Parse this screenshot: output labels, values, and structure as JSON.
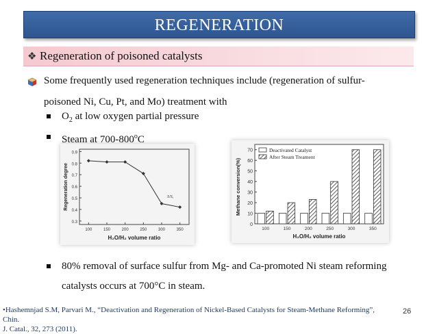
{
  "slide": {
    "title": "REGENERATION",
    "subtitle": "Regeneration of poisoned catalysts",
    "intro_line1": "Some frequently used  regeneration techniques include (regeneration of sulfur-",
    "intro_line2": "poisoned Ni, Cu, Pt, and Mo) treatment with",
    "bullet1_prefix": "O",
    "bullet1_sub": "2",
    "bullet1_suffix": " at low oxygen partial pressure",
    "bullet2_prefix": "Steam  at 700-800",
    "bullet2_sup": "o",
    "bullet2_suffix": "C",
    "bullet3_line1": "80% removal of surface sulfur from Mg- and Ca-promoted Ni steam reforming",
    "bullet3_line2": "catalysts occurs at 700°C in steam.",
    "footer_line1": "•Hashemnjad S.M, Parvari M., “Deactivation and Regeneration of Nickel-Based Catalysts for Steam-Methane Reforming”, Chin.",
    "footer_line2": "J. Catal., 32, 273 (2011).",
    "page_number": "26"
  },
  "chart_data": [
    {
      "type": "line",
      "x": [
        100,
        150,
        200,
        250,
        300,
        350
      ],
      "y": [
        0.82,
        0.81,
        0.81,
        0.71,
        0.45,
        0.42
      ],
      "xlabel": "H₂O/H₂ volume ratio",
      "ylabel": "Regeneration degree",
      "annotation": "S/Sₒ",
      "xticks": [
        "100",
        "150",
        "200",
        "250",
        "300",
        "350"
      ],
      "yticks": [
        "0.3",
        "0.4",
        "0.5",
        "0.6",
        "0.7",
        "0.8",
        "0.9"
      ],
      "xlim": [
        75,
        375
      ],
      "ylim": [
        0.27,
        0.92
      ],
      "grid": false,
      "marker": "diamond",
      "colors": {
        "line": "#333333"
      }
    },
    {
      "type": "bar",
      "categories": [
        "100",
        "150",
        "200",
        "250",
        "300",
        "350"
      ],
      "series": [
        {
          "name": "Deactivated Catalyst",
          "values": [
            10,
            10,
            10,
            10,
            10,
            10
          ]
        },
        {
          "name": "After Steam Treament",
          "values": [
            12,
            20,
            23,
            40,
            70,
            70
          ]
        }
      ],
      "xlabel": "H₂O/H₂ volume ratio",
      "ylabel": "Methane conversion(%)",
      "yticks": [
        "0",
        "10",
        "20",
        "30",
        "40",
        "50",
        "60",
        "70"
      ],
      "ylim": [
        0,
        75
      ],
      "legend": "top-left",
      "grid": false,
      "colors": {
        "deactivated": "#ffffff",
        "after": "hatched"
      }
    }
  ]
}
